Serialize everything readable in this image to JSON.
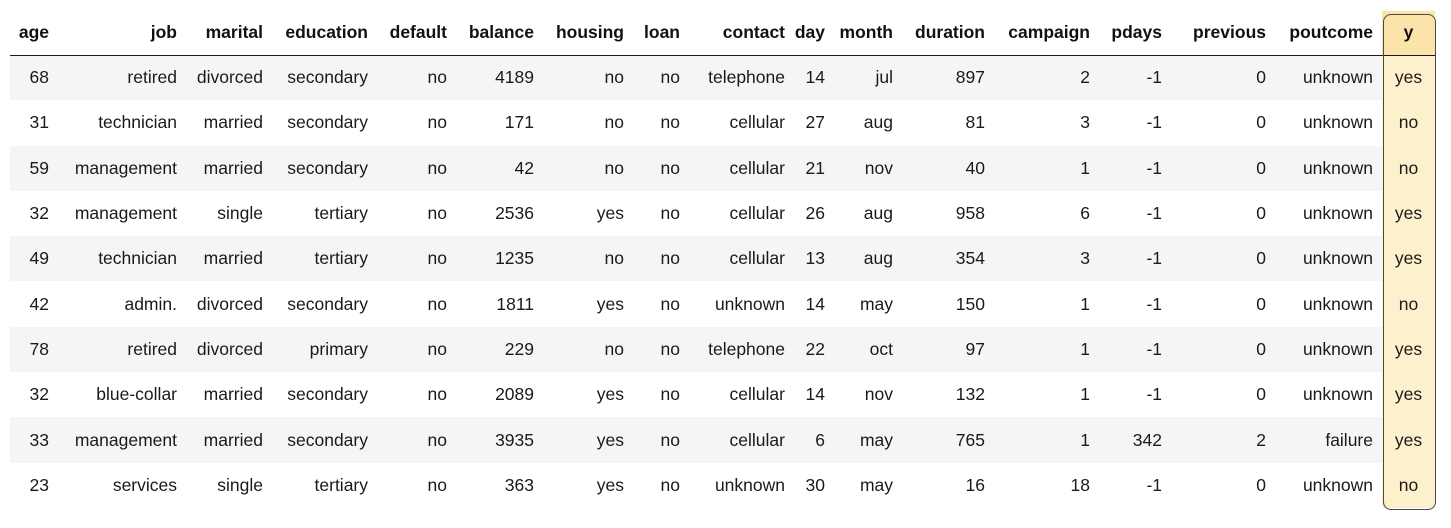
{
  "table": {
    "columns": [
      "age",
      "job",
      "marital",
      "education",
      "default",
      "balance",
      "housing",
      "loan",
      "contact",
      "day",
      "month",
      "duration",
      "campaign",
      "pdays",
      "previous",
      "poutcome",
      "y"
    ],
    "highlighted_column": "y",
    "highlight_color": "#fdf0cc",
    "highlight_header_color": "#fbe3a9",
    "stripe_color": "#f5f5f5",
    "rows": [
      [
        "68",
        "retired",
        "divorced",
        "secondary",
        "no",
        "4189",
        "no",
        "no",
        "telephone",
        "14",
        "jul",
        "897",
        "2",
        "-1",
        "0",
        "unknown",
        "yes"
      ],
      [
        "31",
        "technician",
        "married",
        "secondary",
        "no",
        "171",
        "no",
        "no",
        "cellular",
        "27",
        "aug",
        "81",
        "3",
        "-1",
        "0",
        "unknown",
        "no"
      ],
      [
        "59",
        "management",
        "married",
        "secondary",
        "no",
        "42",
        "no",
        "no",
        "cellular",
        "21",
        "nov",
        "40",
        "1",
        "-1",
        "0",
        "unknown",
        "no"
      ],
      [
        "32",
        "management",
        "single",
        "tertiary",
        "no",
        "2536",
        "yes",
        "no",
        "cellular",
        "26",
        "aug",
        "958",
        "6",
        "-1",
        "0",
        "unknown",
        "yes"
      ],
      [
        "49",
        "technician",
        "married",
        "tertiary",
        "no",
        "1235",
        "no",
        "no",
        "cellular",
        "13",
        "aug",
        "354",
        "3",
        "-1",
        "0",
        "unknown",
        "yes"
      ],
      [
        "42",
        "admin.",
        "divorced",
        "secondary",
        "no",
        "1811",
        "yes",
        "no",
        "unknown",
        "14",
        "may",
        "150",
        "1",
        "-1",
        "0",
        "unknown",
        "no"
      ],
      [
        "78",
        "retired",
        "divorced",
        "primary",
        "no",
        "229",
        "no",
        "no",
        "telephone",
        "22",
        "oct",
        "97",
        "1",
        "-1",
        "0",
        "unknown",
        "yes"
      ],
      [
        "32",
        "blue-collar",
        "married",
        "secondary",
        "no",
        "2089",
        "yes",
        "no",
        "cellular",
        "14",
        "nov",
        "132",
        "1",
        "-1",
        "0",
        "unknown",
        "yes"
      ],
      [
        "33",
        "management",
        "married",
        "secondary",
        "no",
        "3935",
        "yes",
        "no",
        "cellular",
        "6",
        "may",
        "765",
        "1",
        "342",
        "2",
        "failure",
        "yes"
      ],
      [
        "23",
        "services",
        "single",
        "tertiary",
        "no",
        "363",
        "yes",
        "no",
        "unknown",
        "30",
        "may",
        "16",
        "18",
        "-1",
        "0",
        "unknown",
        "no"
      ]
    ]
  }
}
